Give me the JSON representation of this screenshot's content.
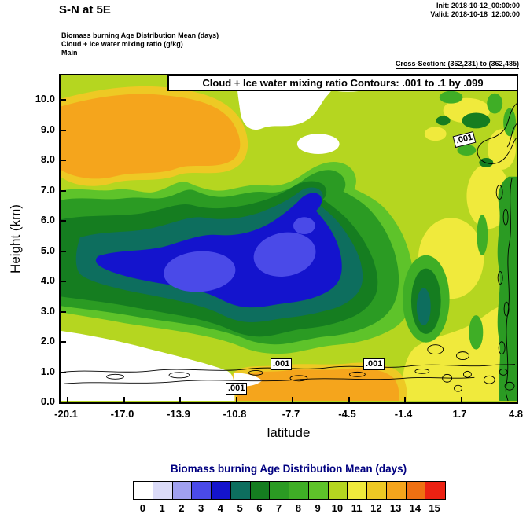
{
  "header": {
    "title": "S-N at 5E",
    "init_line": "Init: 2018-10-12_00:00:00",
    "valid_line": "Valid: 2018-10-18_12:00:00",
    "field_lines": [
      "Biomass burning Age Distribution Mean   (days)",
      "Cloud + Ice water mixing ratio   (g/kg)",
      "Main"
    ],
    "cross_section": "Cross-Section: (362,231) to (362,485)"
  },
  "plot": {
    "banner": "Cloud + Ice water mixing ratio Contours: .001 to .1 by .099",
    "xlabel": "latitude",
    "ylabel": "Height (km)",
    "xticks": [
      "-20.1",
      "-17.0",
      "-13.9",
      "-10.8",
      "-7.7",
      "-4.5",
      "-1.4",
      "1.7",
      "4.8"
    ],
    "yticks": [
      "0.0",
      "1.0",
      "2.0",
      "3.0",
      "4.0",
      "5.0",
      "6.0",
      "7.0",
      "8.0",
      "9.0",
      "10.0"
    ],
    "contour_labels": [
      ".001",
      ".001",
      ".001",
      ".001"
    ]
  },
  "colorbar": {
    "title": "Biomass burning Age Distribution Mean  (days)",
    "title_color": "#000080",
    "values": [
      "0",
      "1",
      "2",
      "3",
      "4",
      "5",
      "6",
      "7",
      "8",
      "9",
      "10",
      "11",
      "12",
      "13",
      "14",
      "15"
    ],
    "colors": [
      "#ffffff",
      "#dbdbf8",
      "#a0a0f0",
      "#4a4ae8",
      "#1414cd",
      "#0d6e5e",
      "#157d20",
      "#2b9b23",
      "#3fae26",
      "#5ec32a",
      "#b5d620",
      "#f0ea3c",
      "#eec924",
      "#f5a51c",
      "#ef7012",
      "#ec2112"
    ]
  },
  "chart_data": {
    "type": "heatmap",
    "title": "S-N at 5E",
    "xlabel": "latitude",
    "ylabel": "Height (km)",
    "xlim": [
      -20.1,
      4.8
    ],
    "ylim": [
      0.0,
      10.5
    ],
    "grid": false,
    "fill_variable": "Biomass burning Age Distribution Mean (days)",
    "fill_levels": [
      0,
      1,
      2,
      3,
      4,
      5,
      6,
      7,
      8,
      9,
      10,
      11,
      12,
      13,
      14,
      15
    ],
    "fill_colors": [
      "#ffffff",
      "#dbdbf8",
      "#a0a0f0",
      "#4a4ae8",
      "#1414cd",
      "#0d6e5e",
      "#157d20",
      "#2b9b23",
      "#3fae26",
      "#5ec32a",
      "#b5d620",
      "#f0ea3c",
      "#eec924",
      "#f5a51c",
      "#ef7012",
      "#ec2112"
    ],
    "x_latitude": [
      -20.1,
      -17.0,
      -13.9,
      -10.8,
      -7.7,
      -4.5,
      -1.4,
      1.7,
      4.8
    ],
    "y_height_km": [
      0,
      1,
      2,
      3,
      4,
      5,
      6,
      7,
      8,
      9,
      10
    ],
    "values_age_days": [
      [
        0,
        0,
        0,
        12,
        13,
        13,
        12,
        11,
        11
      ],
      [
        0,
        0,
        0,
        11,
        12,
        12,
        12,
        11,
        11
      ],
      [
        0,
        8,
        7,
        7,
        7,
        7,
        8,
        11,
        11
      ],
      [
        10,
        7,
        6,
        5,
        5,
        5,
        7,
        10,
        10
      ],
      [
        9,
        6,
        5,
        3,
        4,
        4,
        6,
        9,
        10
      ],
      [
        8,
        5,
        4,
        3,
        4,
        3,
        6,
        9,
        10
      ],
      [
        5,
        6,
        6,
        5,
        4,
        3,
        5,
        9,
        10
      ],
      [
        6,
        12,
        13,
        12,
        10,
        7,
        5,
        9,
        10
      ],
      [
        11,
        13,
        13,
        11,
        0,
        0,
        7,
        9,
        10
      ],
      [
        11,
        13,
        12,
        10,
        0,
        0,
        11,
        8,
        10
      ],
      [
        10,
        12,
        10,
        10,
        0,
        0,
        11,
        10,
        10
      ]
    ],
    "contour_overlay": {
      "variable": "Cloud + Ice water mixing ratio (g/kg)",
      "levels": [
        0.001,
        0.1
      ],
      "label": ".001"
    },
    "legend_position": "bottom"
  }
}
